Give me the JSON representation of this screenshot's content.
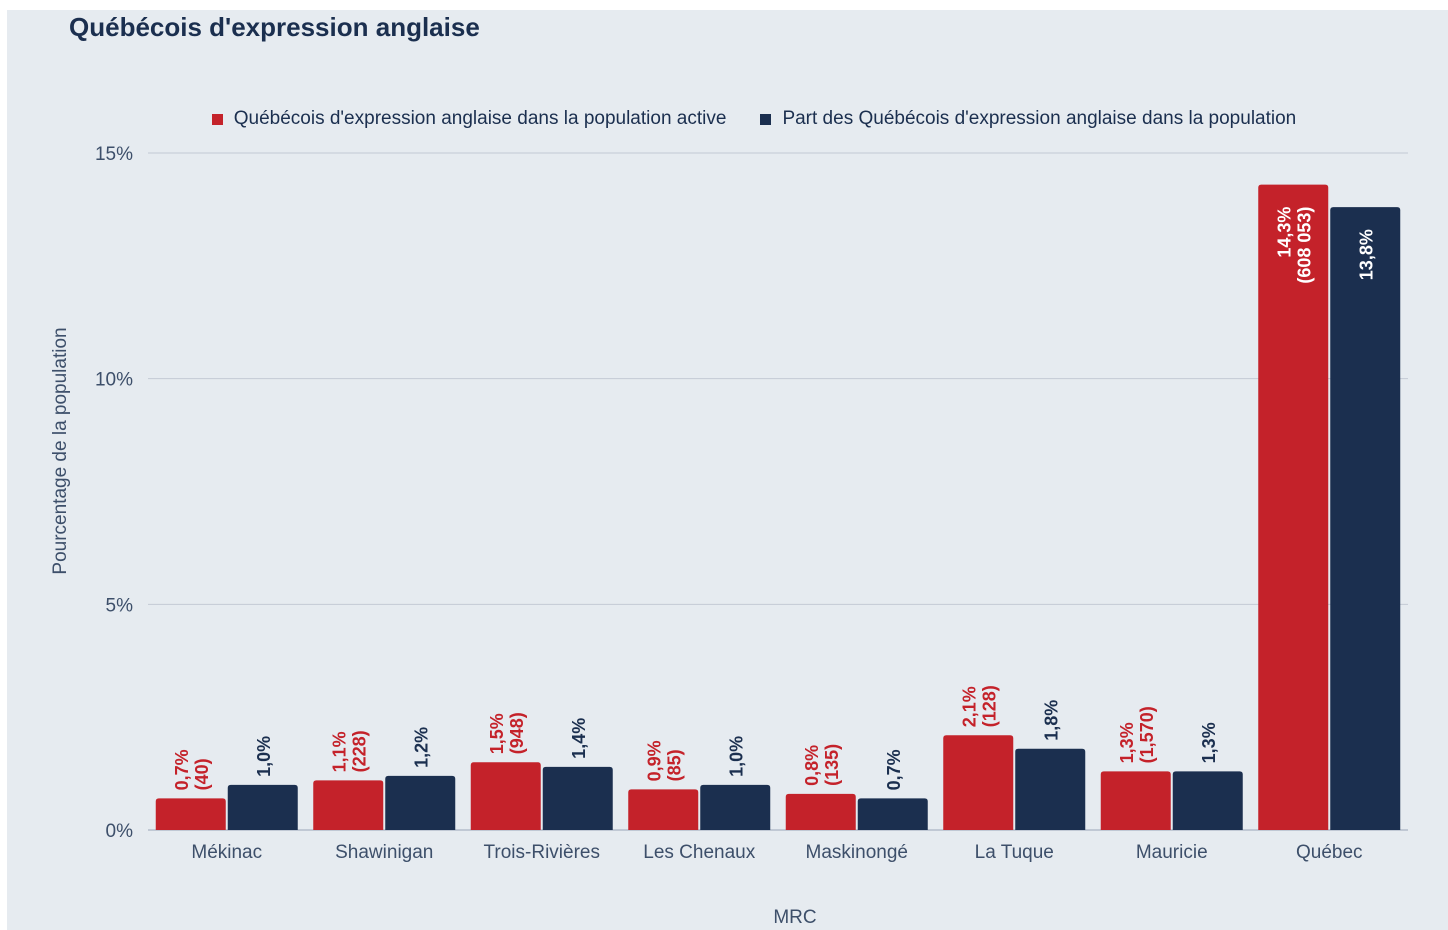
{
  "chart_data": {
    "type": "bar",
    "title": "Québécois d'expression anglaise",
    "xlabel": "MRC",
    "ylabel": "Pourcentage de la population",
    "ylim": [
      0,
      15
    ],
    "yticks": [
      0,
      5,
      10,
      15
    ],
    "ytick_labels": [
      "0%",
      "5%",
      "10%",
      "15%"
    ],
    "grid": true,
    "legend_position": "top-center",
    "categories": [
      "Mékinac",
      "Shawinigan",
      "Trois-Rivières",
      "Les Chenaux",
      "Maskinongé",
      "La Tuque",
      "Mauricie",
      "Québec"
    ],
    "series": [
      {
        "name": "Québécois d'expression anglaise dans la population active",
        "color": "#c4222a",
        "values": [
          0.7,
          1.1,
          1.5,
          0.9,
          0.8,
          2.1,
          1.3,
          14.3
        ],
        "labels": [
          "0,7%",
          "1,1%",
          "1,5%",
          "0,9%",
          "0,8%",
          "2,1%",
          "1,3%",
          "14,3%"
        ],
        "sublabels": [
          "(40)",
          "(228)",
          "(948)",
          "(85)",
          "(135)",
          "(128)",
          "(1,570)",
          "(608 053)"
        ]
      },
      {
        "name": "Part des Québécois d'expression anglaise dans la population",
        "color": "#1b2f4f",
        "values": [
          1.0,
          1.2,
          1.4,
          1.0,
          0.7,
          1.8,
          1.3,
          13.8
        ],
        "labels": [
          "1,0%",
          "1,2%",
          "1,4%",
          "1,0%",
          "0,7%",
          "1,8%",
          "1,3%",
          "13,8%"
        ],
        "sublabels": []
      }
    ]
  }
}
